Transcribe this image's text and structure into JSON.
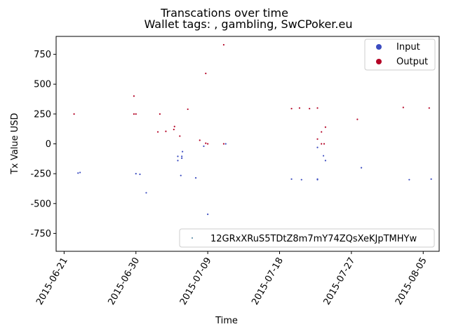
{
  "chart_data": {
    "type": "scatter",
    "suptitle": "Transcations over time",
    "title": "Wallet tags: , gambling, SwCPoker.eu",
    "xlabel": "Time",
    "ylabel": "Tx Value USD",
    "xlim": [
      "2015-06-20",
      "2015-08-07"
    ],
    "ylim": [
      -900,
      900
    ],
    "x_ticks": [
      "2015-06-21",
      "2015-06-30",
      "2015-07-09",
      "2015-07-18",
      "2015-07-27",
      "2015-08-05"
    ],
    "y_ticks": [
      -750,
      -500,
      -250,
      0,
      250,
      500,
      750
    ],
    "grid": false,
    "legend": {
      "placement": "upper-right",
      "entries": [
        {
          "label": "Input",
          "color": "#3b4cc0"
        },
        {
          "label": "Output",
          "color": "#b40426"
        }
      ]
    },
    "legend2": {
      "placement": "lower-right",
      "label": "12GRxXRuS5TDtZ8m7mY74ZQsXeKJpTMHYw",
      "color": "#4a7f9e"
    },
    "series": [
      {
        "name": "Input",
        "color": "#3b4cc0",
        "points": [
          {
            "x": "2015-06-22 18:00",
            "y": -245
          },
          {
            "x": "2015-06-23 00:00",
            "y": -240
          },
          {
            "x": "2015-06-30 00:00",
            "y": -250
          },
          {
            "x": "2015-06-30 12:00",
            "y": -255
          },
          {
            "x": "2015-07-01 07:00",
            "y": -410
          },
          {
            "x": "2015-07-05 06:00",
            "y": -105
          },
          {
            "x": "2015-07-05 06:00",
            "y": -140
          },
          {
            "x": "2015-07-05 15:00",
            "y": -265
          },
          {
            "x": "2015-07-05 18:00",
            "y": -105
          },
          {
            "x": "2015-07-05 18:00",
            "y": -120
          },
          {
            "x": "2015-07-05 20:00",
            "y": -65
          },
          {
            "x": "2015-07-07 12:00",
            "y": -285
          },
          {
            "x": "2015-07-08 12:00",
            "y": -20
          },
          {
            "x": "2015-07-09 00:00",
            "y": -590
          },
          {
            "x": "2015-07-11 06:00",
            "y": 0
          },
          {
            "x": "2015-07-19 12:00",
            "y": -295
          },
          {
            "x": "2015-07-20 18:00",
            "y": -300
          },
          {
            "x": "2015-07-22 18:00",
            "y": -300
          },
          {
            "x": "2015-07-22 18:00",
            "y": -295
          },
          {
            "x": "2015-07-22 18:00",
            "y": -30
          },
          {
            "x": "2015-07-23 12:00",
            "y": -100
          },
          {
            "x": "2015-07-23 18:00",
            "y": -140
          },
          {
            "x": "2015-07-28 06:00",
            "y": -200
          },
          {
            "x": "2015-08-03 06:00",
            "y": -300
          },
          {
            "x": "2015-08-06 00:00",
            "y": -295
          }
        ]
      },
      {
        "name": "Output",
        "color": "#b40426",
        "points": [
          {
            "x": "2015-06-22 06:00",
            "y": 250
          },
          {
            "x": "2015-06-29 18:00",
            "y": 400
          },
          {
            "x": "2015-06-29 18:00",
            "y": 250
          },
          {
            "x": "2015-06-30 00:00",
            "y": 250
          },
          {
            "x": "2015-07-02 18:00",
            "y": 100
          },
          {
            "x": "2015-07-03 00:00",
            "y": 250
          },
          {
            "x": "2015-07-03 18:00",
            "y": 105
          },
          {
            "x": "2015-07-04 18:00",
            "y": 120
          },
          {
            "x": "2015-07-04 20:00",
            "y": 145
          },
          {
            "x": "2015-07-05 12:00",
            "y": 65
          },
          {
            "x": "2015-07-06 12:00",
            "y": 290
          },
          {
            "x": "2015-07-08 00:00",
            "y": 30
          },
          {
            "x": "2015-07-08 18:00",
            "y": 590
          },
          {
            "x": "2015-07-08 18:00",
            "y": 5
          },
          {
            "x": "2015-07-09 00:00",
            "y": 0
          },
          {
            "x": "2015-07-11 00:00",
            "y": 830
          },
          {
            "x": "2015-07-11 00:00",
            "y": 0
          },
          {
            "x": "2015-07-19 12:00",
            "y": 295
          },
          {
            "x": "2015-07-20 12:00",
            "y": 300
          },
          {
            "x": "2015-07-21 18:00",
            "y": 295
          },
          {
            "x": "2015-07-22 18:00",
            "y": 300
          },
          {
            "x": "2015-07-22 18:00",
            "y": 40
          },
          {
            "x": "2015-07-23 06:00",
            "y": 100
          },
          {
            "x": "2015-07-23 06:00",
            "y": 0
          },
          {
            "x": "2015-07-23 14:00",
            "y": 0
          },
          {
            "x": "2015-07-23 18:00",
            "y": 140
          },
          {
            "x": "2015-07-27 18:00",
            "y": 205
          },
          {
            "x": "2015-08-02 12:00",
            "y": 305
          },
          {
            "x": "2015-08-05 18:00",
            "y": 300
          }
        ]
      }
    ]
  }
}
